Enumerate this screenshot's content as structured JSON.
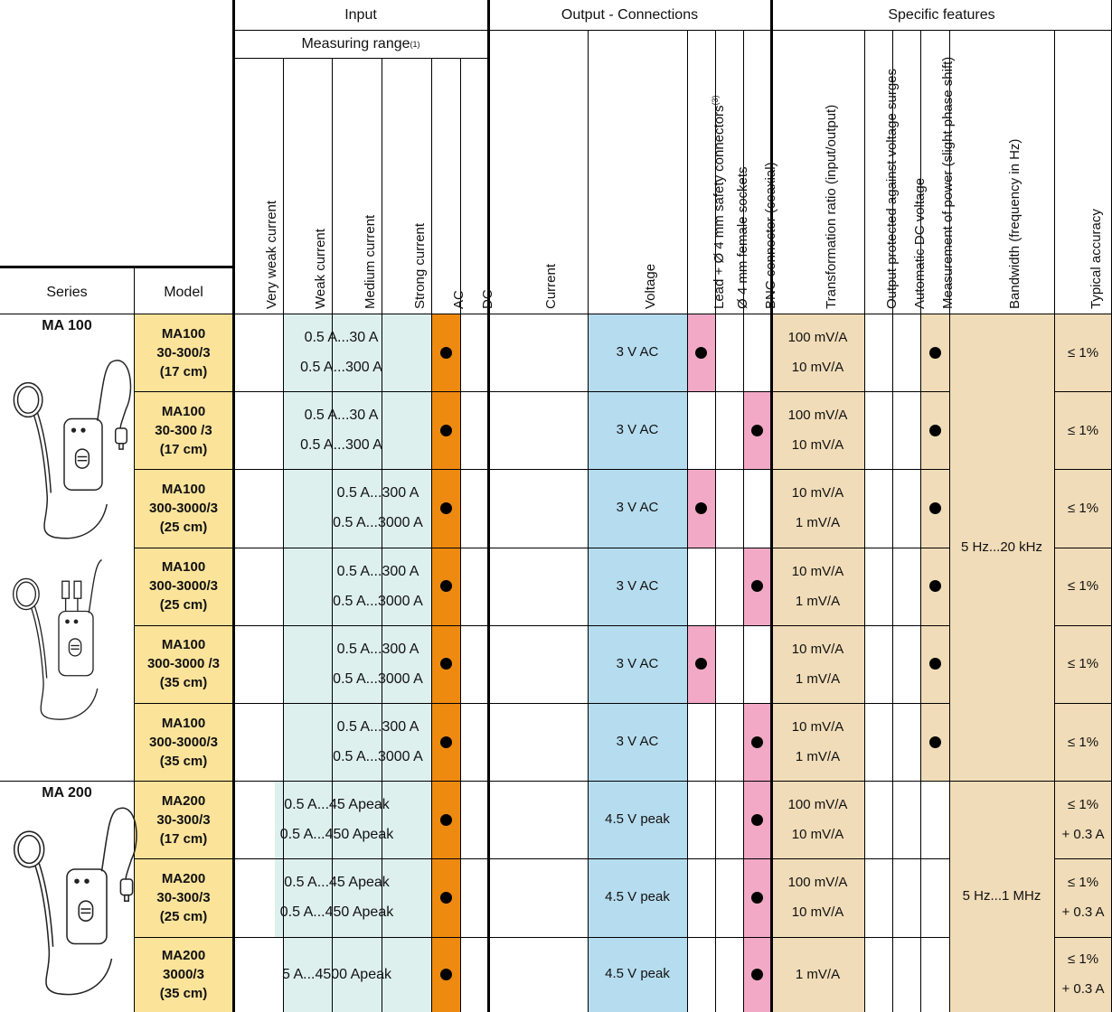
{
  "colors": {
    "model_bg": "#fbe39a",
    "range_bg": "#ddf0ee",
    "ac_bg": "#ee8a10",
    "voltage_bg": "#b6dcef",
    "pink_bg": "#f2a9c6",
    "feature_bg": "#f0dcb8"
  },
  "headers": {
    "input": "Input",
    "output": "Output - Connections",
    "features": "Specific features",
    "measuring_range": "Measuring range",
    "measuring_range_sup": "(1)",
    "series": "Series",
    "model": "Model",
    "very_weak": "Very weak current",
    "weak": "Weak current",
    "medium": "Medium current",
    "strong": "Strong current",
    "ac": "AC",
    "dc": "DC",
    "current": "Current",
    "voltage": "Voltage",
    "lead": "Lead + Ø 4 mm safety connectors",
    "lead_sup": "(3)",
    "female": "Ø 4 mm female sockets",
    "bnc": "BNC connector (coaxial)",
    "ratio": "Transformation ratio (input/output)",
    "protected": "Output protected against voltage surges",
    "auto_dc": "Automatic DC voltage",
    "power": "Measurement of power (slight phase shift)",
    "bandwidth": "Bandwidth (frequency in Hz)",
    "accuracy": "Typical accuracy"
  },
  "series": [
    {
      "name": "MA 100"
    },
    {
      "name": "MA 200"
    }
  ],
  "bandwidth_groups": [
    "5 Hz...20 kHz",
    "5 Hz...1 MHz"
  ],
  "rows": [
    {
      "model": [
        "MA100",
        "30-300/3",
        "(17 cm)"
      ],
      "range": [
        "0.5 A...30 A",
        "0.5 A...300 A"
      ],
      "voltage": "3 V AC",
      "lead": true,
      "bnc": false,
      "ratio": [
        "100 mV/A",
        "10 mV/A"
      ],
      "power": true,
      "accuracy": [
        "≤ 1%"
      ]
    },
    {
      "model": [
        "MA100",
        "30-300 /3",
        "(17 cm)"
      ],
      "range": [
        "0.5 A...30 A",
        "0.5 A...300 A"
      ],
      "voltage": "3 V AC",
      "lead": false,
      "bnc": true,
      "ratio": [
        "100 mV/A",
        "10 mV/A"
      ],
      "power": true,
      "accuracy": [
        "≤ 1%"
      ]
    },
    {
      "model": [
        "MA100",
        "300-3000/3",
        "(25 cm)"
      ],
      "range": [
        "0.5 A...300 A",
        "0.5 A...3000 A"
      ],
      "voltage": "3 V AC",
      "lead": true,
      "bnc": false,
      "ratio": [
        "10 mV/A",
        "1 mV/A"
      ],
      "power": true,
      "accuracy": [
        "≤ 1%"
      ]
    },
    {
      "model": [
        "MA100",
        "300-3000/3",
        "(25 cm)"
      ],
      "range": [
        "0.5 A...300 A",
        "0.5 A...3000 A"
      ],
      "voltage": "3 V AC",
      "lead": false,
      "bnc": true,
      "ratio": [
        "10 mV/A",
        "1 mV/A"
      ],
      "power": true,
      "accuracy": [
        "≤ 1%"
      ]
    },
    {
      "model": [
        "MA100",
        "300-3000 /3",
        "(35 cm)"
      ],
      "range": [
        "0.5 A...300 A",
        "0.5 A...3000 A"
      ],
      "voltage": "3 V AC",
      "lead": true,
      "bnc": false,
      "ratio": [
        "10 mV/A",
        "1 mV/A"
      ],
      "power": true,
      "accuracy": [
        "≤ 1%"
      ]
    },
    {
      "model": [
        "MA100",
        "300-3000/3",
        "(35 cm)"
      ],
      "range": [
        "0.5 A...300 A",
        "0.5 A...3000 A"
      ],
      "voltage": "3 V AC",
      "lead": false,
      "bnc": true,
      "ratio": [
        "10 mV/A",
        "1 mV/A"
      ],
      "power": true,
      "accuracy": [
        "≤ 1%"
      ]
    },
    {
      "model": [
        "MA200",
        "30-300/3",
        "(17 cm)"
      ],
      "range": [
        "0.5 A...45 Apeak",
        "0.5 A...450 Apeak"
      ],
      "voltage": "4.5 V peak",
      "lead": false,
      "bnc": true,
      "ratio": [
        "100 mV/A",
        "10 mV/A"
      ],
      "power": false,
      "accuracy": [
        "≤ 1%",
        "+ 0.3 A"
      ]
    },
    {
      "model": [
        "MA200",
        "30-300/3",
        "(25 cm)"
      ],
      "range": [
        "0.5 A...45 Apeak",
        "0.5 A...450 Apeak"
      ],
      "voltage": "4.5 V peak",
      "lead": false,
      "bnc": true,
      "ratio": [
        "100 mV/A",
        "10 mV/A"
      ],
      "power": false,
      "accuracy": [
        "≤ 1%",
        "+ 0.3 A"
      ]
    },
    {
      "model": [
        "MA200",
        "3000/3",
        "(35 cm)"
      ],
      "range": [
        "5 A...4500 Apeak"
      ],
      "voltage": "4.5 V peak",
      "lead": false,
      "bnc": true,
      "ratio": [
        "1 mV/A"
      ],
      "power": false,
      "accuracy": [
        "≤ 1%",
        "+ 0.3 A"
      ]
    }
  ]
}
